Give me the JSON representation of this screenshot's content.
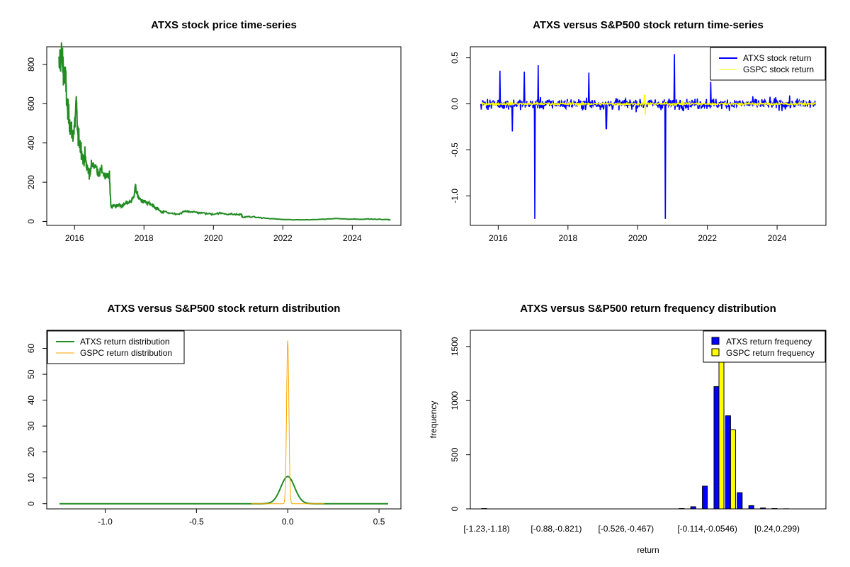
{
  "chart_data": [
    {
      "type": "line",
      "title": "ATXS stock price time-series",
      "xlabel": "",
      "ylabel": "",
      "xlim": [
        2015.2,
        2025.4
      ],
      "ylim": [
        -20,
        890
      ],
      "xticks": [
        2016,
        2018,
        2020,
        2022,
        2024
      ],
      "xtick_labels": [
        "2016",
        "2018",
        "2020",
        "2022",
        "2024"
      ],
      "yticks": [
        0,
        200,
        400,
        600,
        800
      ],
      "ytick_labels": [
        "0",
        "200",
        "400",
        "600",
        "800"
      ],
      "colors": {
        "series": "#228B22"
      },
      "series": [
        {
          "x": [
            2015.55,
            2015.6,
            2015.65,
            2015.7,
            2015.75,
            2015.8,
            2015.85,
            2015.9,
            2015.95,
            2016.0,
            2016.05,
            2016.1,
            2016.15,
            2016.2,
            2016.25,
            2016.3,
            2016.35,
            2016.4,
            2016.45,
            2016.5,
            2016.6,
            2016.7,
            2016.8,
            2016.9,
            2017.0,
            2017.05,
            2017.1,
            2017.15,
            2017.2,
            2017.3,
            2017.4,
            2017.5,
            2017.6,
            2017.7,
            2017.75,
            2017.8,
            2017.85,
            2017.9,
            2018.0,
            2018.1,
            2018.2,
            2018.3,
            2018.4,
            2018.5,
            2018.6,
            2018.8,
            2019.0,
            2019.2,
            2019.4,
            2019.6,
            2019.8,
            2020.0,
            2020.2,
            2020.4,
            2020.6,
            2020.8,
            2020.85,
            2021.0,
            2021.3,
            2021.6,
            2022.0,
            2022.5,
            2023.0,
            2023.5,
            2024.0,
            2024.5,
            2025.0,
            2025.1
          ],
          "y": [
            780,
            860,
            820,
            760,
            700,
            560,
            520,
            470,
            440,
            480,
            600,
            430,
            400,
            360,
            310,
            330,
            280,
            260,
            240,
            300,
            280,
            250,
            260,
            220,
            240,
            75,
            80,
            82,
            78,
            85,
            80,
            95,
            100,
            120,
            180,
            140,
            120,
            110,
            100,
            95,
            85,
            70,
            65,
            45,
            50,
            40,
            35,
            55,
            48,
            45,
            40,
            38,
            42,
            38,
            36,
            35,
            20,
            25,
            20,
            15,
            10,
            8,
            10,
            15,
            12,
            12,
            10,
            8
          ]
        }
      ]
    },
    {
      "type": "line",
      "title": "ATXS versus S&P500 stock return time-series",
      "xlabel": "",
      "ylabel": "",
      "xlim": [
        2015.2,
        2025.4
      ],
      "ylim": [
        -1.32,
        0.62
      ],
      "xticks": [
        2016,
        2018,
        2020,
        2022,
        2024
      ],
      "xtick_labels": [
        "2016",
        "2018",
        "2020",
        "2022",
        "2024"
      ],
      "yticks": [
        -1.0,
        -0.5,
        0.0,
        0.5
      ],
      "ytick_labels": [
        "-1.0",
        "-0.5",
        "0.0",
        "0.5"
      ],
      "legend": {
        "position": "top-right",
        "entries": [
          "ATXS stock return",
          "GSPC stock return"
        ]
      },
      "colors": {
        "atxs": "#0000FF",
        "gspc": "#FFFF00"
      },
      "series": [
        {
          "name": "ATXS stock return",
          "x_range": [
            2015.5,
            2025.1
          ],
          "spikes": [
            {
              "x": 2016.05,
              "y": 0.36
            },
            {
              "x": 2016.4,
              "y": -0.3
            },
            {
              "x": 2016.75,
              "y": 0.35
            },
            {
              "x": 2017.05,
              "y": -1.25
            },
            {
              "x": 2017.15,
              "y": 0.42
            },
            {
              "x": 2018.6,
              "y": 0.34
            },
            {
              "x": 2019.1,
              "y": -0.27
            },
            {
              "x": 2020.8,
              "y": -1.25
            },
            {
              "x": 2021.05,
              "y": 0.54
            },
            {
              "x": 2022.1,
              "y": 0.24
            }
          ]
        },
        {
          "name": "GSPC stock return",
          "x_range": [
            2015.5,
            2025.1
          ],
          "spikes": [
            {
              "x": 2020.2,
              "y": 0.09
            },
            {
              "x": 2020.22,
              "y": -0.12
            }
          ]
        }
      ]
    },
    {
      "type": "line",
      "title": "ATXS versus S&P500 stock return distribution",
      "xlabel": "",
      "ylabel": "",
      "xlim": [
        -1.32,
        0.62
      ],
      "ylim": [
        -2,
        67
      ],
      "xticks": [
        -1.0,
        -0.5,
        0.0,
        0.5
      ],
      "xtick_labels": [
        "-1.0",
        "-0.5",
        "0.0",
        "0.5"
      ],
      "yticks": [
        0,
        10,
        20,
        30,
        40,
        50,
        60
      ],
      "ytick_labels": [
        "0",
        "10",
        "20",
        "30",
        "40",
        "50",
        "60"
      ],
      "legend": {
        "position": "top-left",
        "entries": [
          "ATXS return distribution",
          "GSPC return distribution"
        ]
      },
      "colors": {
        "atxs": "#228B22",
        "gspc": "#FFA500"
      },
      "series": [
        {
          "name": "ATXS return distribution",
          "x_range": [
            -1.25,
            0.55
          ],
          "peak_x": 0.0,
          "peak_y": 10.5,
          "width": 0.038
        },
        {
          "name": "GSPC return distribution",
          "x_range": [
            -0.2,
            0.2
          ],
          "peak_x": 0.0,
          "peak_y": 63,
          "width": 0.0063
        }
      ]
    },
    {
      "type": "bar",
      "title": "ATXS versus S&P500 return frequency distribution",
      "xlabel": "return",
      "ylabel": "frequency",
      "ylim": [
        0,
        1650
      ],
      "yticks": [
        0,
        500,
        1000,
        1500
      ],
      "ytick_labels": [
        "0",
        "500",
        "1000",
        "1500"
      ],
      "tick_labels_shown": [
        "[-1.23,-1.18)",
        "[-0.88,-0.821)",
        "[-0.526,-0.467)",
        "[-0.114,-0.0546)",
        "[0.24,0.299)"
      ],
      "tick_label_groups": [
        0,
        6,
        12,
        19,
        25
      ],
      "legend": {
        "position": "top-right",
        "entries": [
          "ATXS return frequency",
          "GSPC return frequency"
        ]
      },
      "colors": {
        "atxs": "#0000FF",
        "gspc": "#FFFF00"
      },
      "series": [
        {
          "name": "ATXS return frequency",
          "values": [
            3,
            0,
            0,
            0,
            0,
            0,
            0,
            0,
            0,
            0,
            0,
            0,
            0,
            0,
            0,
            0,
            0,
            3,
            20,
            210,
            1130,
            860,
            150,
            30,
            8,
            3,
            1,
            0,
            0,
            0,
            0
          ]
        },
        {
          "name": "GSPC return frequency",
          "values": [
            0,
            0,
            0,
            0,
            0,
            0,
            0,
            0,
            0,
            0,
            0,
            0,
            0,
            0,
            0,
            0,
            0,
            0,
            0,
            0,
            1640,
            730,
            0,
            0,
            0,
            0,
            0,
            0,
            0,
            0,
            0
          ]
        }
      ]
    }
  ]
}
